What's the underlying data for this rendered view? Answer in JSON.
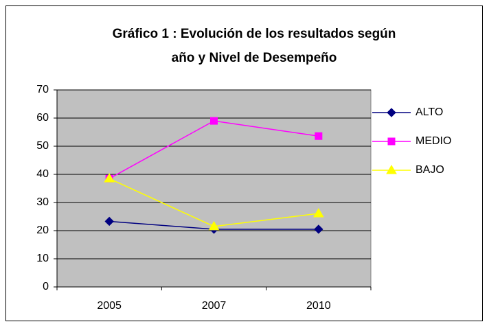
{
  "chart_data": {
    "type": "line",
    "title": [
      "Gráfico 1 : Evolución de los resultados según",
      "año y Nivel de Desempeño"
    ],
    "categories": [
      "2005",
      "2007",
      "2010"
    ],
    "series": [
      {
        "name": "ALTO",
        "color": "#000080",
        "marker": "diamond",
        "values": [
          23.3,
          20.5,
          20.5
        ]
      },
      {
        "name": "MEDIO",
        "color": "#ff00ff",
        "marker": "square",
        "values": [
          38.5,
          59,
          53.6
        ]
      },
      {
        "name": "BAJO",
        "color": "#ffff00",
        "marker": "triangle",
        "values": [
          38.5,
          21.5,
          26.1
        ]
      }
    ],
    "ylim": [
      0,
      70
    ],
    "yticks": [
      0,
      10,
      20,
      30,
      40,
      50,
      60,
      70
    ],
    "grid": true,
    "legend": "right",
    "plot_background": "#c0c0c0"
  }
}
